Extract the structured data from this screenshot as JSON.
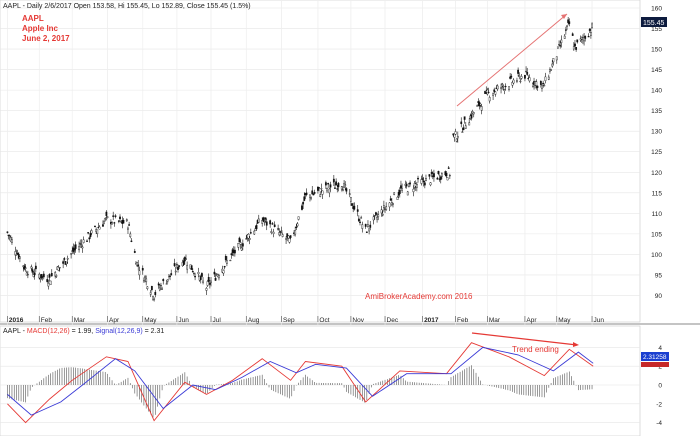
{
  "header": {
    "symbol": "AAPL",
    "info": "Daily 2/6/2017 Open 153.58, Hi 155.45, Lo 152.89, Close 155.45 (1.5%)"
  },
  "legend": {
    "ticker": "AAPL",
    "company": "Apple Inc",
    "date": "June 2, 2017"
  },
  "watermark": "AmiBrokerAcademy.com  2016",
  "annotation_trend": "Trend ending",
  "macd_header": {
    "symbol": "AAPL",
    "macd_label": "MACD(12,26)",
    "macd_value": "= 1.99,",
    "signal_label": "Signal(12,26,9)",
    "signal_value": "= 2.31"
  },
  "colors": {
    "macd_line": "#e53935",
    "signal_line": "#3a3ad6",
    "arrow": "#e57373",
    "price_badge": "#0d1b3e",
    "macd_badge": "#1a3fd0",
    "macd_badge2": "#c62828"
  },
  "chart_data": [
    {
      "type": "candlestick",
      "title": "",
      "x_ticks": [
        "2016",
        "Feb",
        "Mar",
        "Apr",
        "May",
        "Jun",
        "Jul",
        "Aug",
        "Sep",
        "Oct",
        "Nov",
        "Dec",
        "2017",
        "Feb",
        "Mar",
        "Apr",
        "May",
        "Jun"
      ],
      "y_ticks": [
        90,
        95,
        100,
        105,
        110,
        115,
        120,
        125,
        130,
        135,
        140,
        145,
        150,
        155,
        160
      ],
      "ylim": [
        85,
        160
      ],
      "last_price_label": "155.45",
      "close_path": [
        {
          "date": "2016-01-04",
          "close": 105.4
        },
        {
          "date": "2016-01-20",
          "close": 96.5
        },
        {
          "date": "2016-02-10",
          "close": 94.0
        },
        {
          "date": "2016-03-01",
          "close": 100.5
        },
        {
          "date": "2016-03-31",
          "close": 108.5
        },
        {
          "date": "2016-04-19",
          "close": 107.5
        },
        {
          "date": "2016-04-27",
          "close": 97.8
        },
        {
          "date": "2016-05-12",
          "close": 90.3
        },
        {
          "date": "2016-06-08",
          "close": 99.0
        },
        {
          "date": "2016-06-27",
          "close": 92.0
        },
        {
          "date": "2016-07-20",
          "close": 99.9
        },
        {
          "date": "2016-08-15",
          "close": 108.5
        },
        {
          "date": "2016-09-09",
          "close": 103.0
        },
        {
          "date": "2016-09-22",
          "close": 114.0
        },
        {
          "date": "2016-10-24",
          "close": 117.5
        },
        {
          "date": "2016-11-14",
          "close": 105.8
        },
        {
          "date": "2016-12-14",
          "close": 115.5
        },
        {
          "date": "2017-01-24",
          "close": 119.9
        },
        {
          "date": "2017-02-01",
          "close": 128.8
        },
        {
          "date": "2017-03-01",
          "close": 139.0
        },
        {
          "date": "2017-04-03",
          "close": 143.7
        },
        {
          "date": "2017-04-19",
          "close": 140.7
        },
        {
          "date": "2017-05-12",
          "close": 156.1
        },
        {
          "date": "2017-05-17",
          "close": 150.3
        },
        {
          "date": "2017-06-02",
          "close": 155.45
        }
      ]
    },
    {
      "type": "line",
      "title": "",
      "y_ticks": [
        -4,
        -2,
        0,
        2,
        4
      ],
      "ylim": [
        -5,
        5
      ],
      "last_value_label": "2.31258",
      "series": [
        {
          "name": "MACD(12,26)",
          "points": [
            {
              "date": "2016-01-04",
              "value": -2.0
            },
            {
              "date": "2016-01-20",
              "value": -4.0
            },
            {
              "date": "2016-02-10",
              "value": -1.5
            },
            {
              "date": "2016-03-01",
              "value": 0.5
            },
            {
              "date": "2016-03-31",
              "value": 3.0
            },
            {
              "date": "2016-04-19",
              "value": 2.5
            },
            {
              "date": "2016-05-12",
              "value": -3.8
            },
            {
              "date": "2016-06-08",
              "value": 0.3
            },
            {
              "date": "2016-06-27",
              "value": -1.0
            },
            {
              "date": "2016-07-20",
              "value": 0.5
            },
            {
              "date": "2016-08-15",
              "value": 2.8
            },
            {
              "date": "2016-09-09",
              "value": 0.5
            },
            {
              "date": "2016-09-22",
              "value": 2.5
            },
            {
              "date": "2016-10-24",
              "value": 2.0
            },
            {
              "date": "2016-11-14",
              "value": -1.8
            },
            {
              "date": "2016-12-14",
              "value": 1.5
            },
            {
              "date": "2017-01-24",
              "value": 1.2
            },
            {
              "date": "2017-02-15",
              "value": 4.5
            },
            {
              "date": "2017-03-20",
              "value": 3.0
            },
            {
              "date": "2017-04-20",
              "value": 1.0
            },
            {
              "date": "2017-05-12",
              "value": 3.8
            },
            {
              "date": "2017-06-02",
              "value": 1.99
            }
          ]
        },
        {
          "name": "Signal(12,26,9)",
          "points": [
            {
              "date": "2016-01-04",
              "value": -1.0
            },
            {
              "date": "2016-01-25",
              "value": -3.2
            },
            {
              "date": "2016-02-20",
              "value": -1.8
            },
            {
              "date": "2016-03-10",
              "value": 0.0
            },
            {
              "date": "2016-04-08",
              "value": 2.8
            },
            {
              "date": "2016-04-25",
              "value": 1.5
            },
            {
              "date": "2016-05-20",
              "value": -2.5
            },
            {
              "date": "2016-06-15",
              "value": 0.0
            },
            {
              "date": "2016-07-05",
              "value": -0.5
            },
            {
              "date": "2016-07-28",
              "value": 0.8
            },
            {
              "date": "2016-08-22",
              "value": 2.5
            },
            {
              "date": "2016-09-14",
              "value": 1.3
            },
            {
              "date": "2016-10-01",
              "value": 2.2
            },
            {
              "date": "2016-10-28",
              "value": 1.8
            },
            {
              "date": "2016-11-20",
              "value": -1.2
            },
            {
              "date": "2016-12-20",
              "value": 1.2
            },
            {
              "date": "2017-01-28",
              "value": 1.2
            },
            {
              "date": "2017-02-25",
              "value": 4.0
            },
            {
              "date": "2017-03-28",
              "value": 3.2
            },
            {
              "date": "2017-04-28",
              "value": 1.5
            },
            {
              "date": "2017-05-20",
              "value": 3.5
            },
            {
              "date": "2017-06-02",
              "value": 2.31
            }
          ]
        }
      ],
      "histogram_note": "MACD - Signal difference shown as bars"
    }
  ]
}
